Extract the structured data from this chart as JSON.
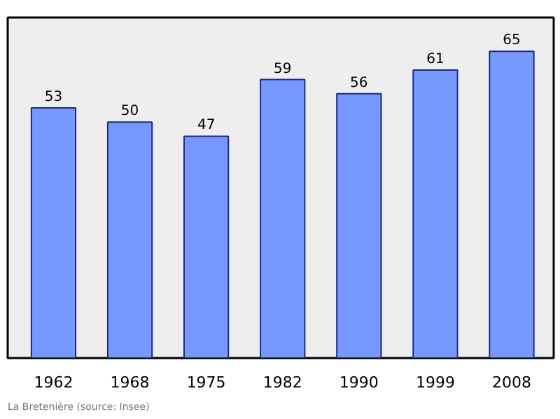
{
  "chart_data": {
    "type": "bar",
    "categories": [
      "1962",
      "1968",
      "1975",
      "1982",
      "1990",
      "1999",
      "2008"
    ],
    "values": [
      53,
      50,
      47,
      59,
      56,
      61,
      65
    ],
    "color": "#7799ff",
    "data_labels": true,
    "grid": false,
    "tick_labels": "x",
    "annotations": [
      "La Bretenière   (source: Insee)"
    ]
  }
}
